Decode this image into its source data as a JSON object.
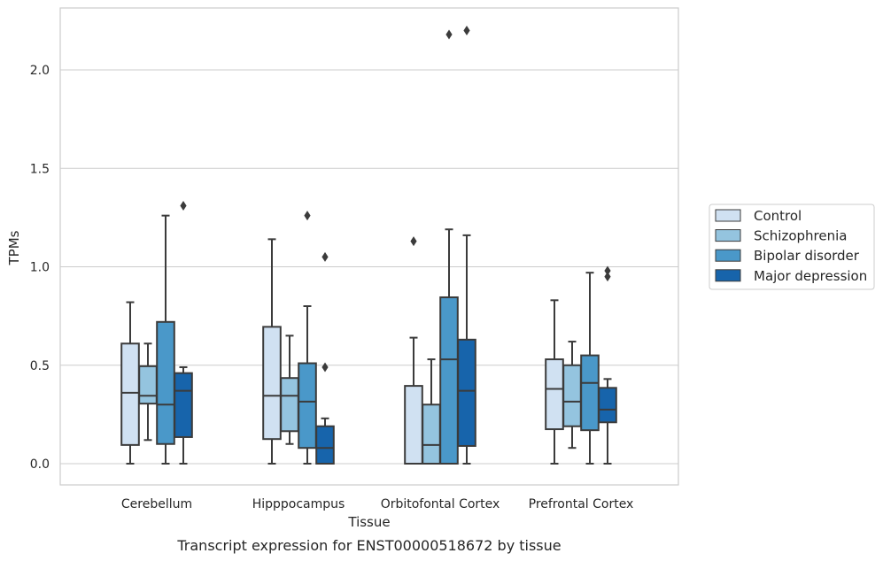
{
  "chart_data": {
    "type": "boxplot",
    "caption": "Transcript expression for ENST00000518672 by tissue",
    "xlabel": "Tissue",
    "ylabel": "TPMs",
    "ylim": [
      -0.11,
      2.32
    ],
    "yticks": [
      0.0,
      0.5,
      1.0,
      1.5,
      2.0
    ],
    "ytick_labels": [
      "0.0",
      "0.5",
      "1.0",
      "1.5",
      "2.0"
    ],
    "grid": "horizontal",
    "legend_position": "outside-right",
    "categories": [
      "Cerebellum",
      "Hipppocampus",
      "Orbitofontal Cortex",
      "Prefrontal Cortex"
    ],
    "series": [
      {
        "name": "Control",
        "color": "#d0e1f2",
        "boxes": [
          {
            "min": 0.0,
            "q1": 0.095,
            "median": 0.36,
            "q3": 0.61,
            "max": 0.82,
            "outliers": []
          },
          {
            "min": 0.0,
            "q1": 0.125,
            "median": 0.345,
            "q3": 0.695,
            "max": 1.14,
            "outliers": []
          },
          {
            "min": 0.0,
            "q1": 0.0,
            "median": 0.0,
            "q3": 0.395,
            "max": 0.64,
            "outliers": [
              1.13
            ]
          },
          {
            "min": 0.0,
            "q1": 0.175,
            "median": 0.38,
            "q3": 0.53,
            "max": 0.83,
            "outliers": []
          }
        ]
      },
      {
        "name": "Schizophrenia",
        "color": "#94c4df",
        "boxes": [
          {
            "min": 0.12,
            "q1": 0.305,
            "median": 0.345,
            "q3": 0.495,
            "max": 0.61,
            "outliers": []
          },
          {
            "min": 0.1,
            "q1": 0.165,
            "median": 0.345,
            "q3": 0.435,
            "max": 0.65,
            "outliers": []
          },
          {
            "min": 0.0,
            "q1": 0.0,
            "median": 0.095,
            "q3": 0.3,
            "max": 0.53,
            "outliers": []
          },
          {
            "min": 0.08,
            "q1": 0.19,
            "median": 0.315,
            "q3": 0.5,
            "max": 0.62,
            "outliers": []
          }
        ]
      },
      {
        "name": "Bipolar disorder",
        "color": "#4a98c9",
        "boxes": [
          {
            "min": 0.0,
            "q1": 0.1,
            "median": 0.3,
            "q3": 0.72,
            "max": 1.26,
            "outliers": []
          },
          {
            "min": 0.0,
            "q1": 0.08,
            "median": 0.315,
            "q3": 0.51,
            "max": 0.8,
            "outliers": [
              1.26
            ]
          },
          {
            "min": 0.0,
            "q1": 0.0,
            "median": 0.53,
            "q3": 0.845,
            "max": 1.19,
            "outliers": [
              2.18
            ]
          },
          {
            "min": 0.0,
            "q1": 0.17,
            "median": 0.41,
            "q3": 0.55,
            "max": 0.97,
            "outliers": []
          }
        ]
      },
      {
        "name": "Major depression",
        "color": "#1764ab",
        "boxes": [
          {
            "min": 0.0,
            "q1": 0.135,
            "median": 0.37,
            "q3": 0.46,
            "max": 0.49,
            "outliers": [
              1.31
            ]
          },
          {
            "min": 0.0,
            "q1": 0.0,
            "median": 0.08,
            "q3": 0.19,
            "max": 0.23,
            "outliers": [
              0.49,
              1.05
            ]
          },
          {
            "min": 0.0,
            "q1": 0.09,
            "median": 0.37,
            "q3": 0.63,
            "max": 1.16,
            "outliers": [
              2.2
            ]
          },
          {
            "min": 0.0,
            "q1": 0.21,
            "median": 0.275,
            "q3": 0.385,
            "max": 0.43,
            "outliers": [
              0.95,
              0.98
            ]
          }
        ]
      }
    ]
  }
}
